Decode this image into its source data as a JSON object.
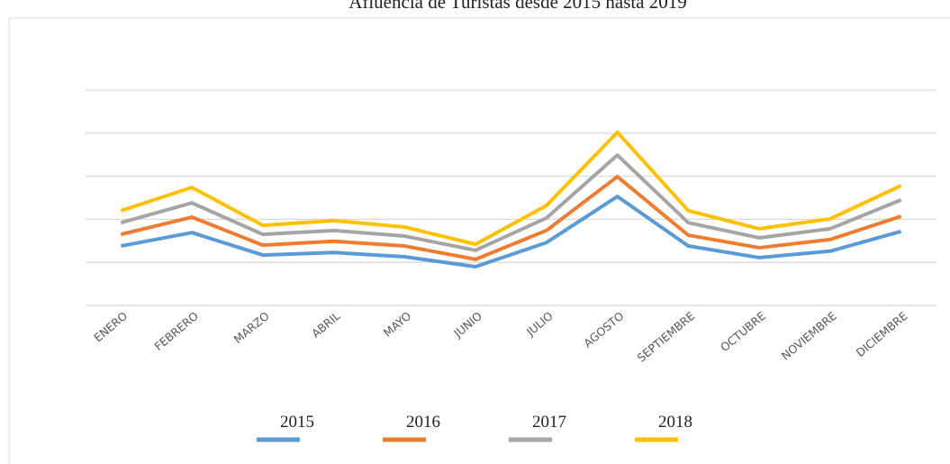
{
  "chart_data": {
    "type": "line",
    "title": "Afluencia de Turistas desde 2015 hasta 2019",
    "categories": [
      "ENERO",
      "FEBRERO",
      "MARZO",
      "ABRIL",
      "MAYO",
      "JUNIO",
      "JULIO",
      "AGOSTO",
      "SEPTIEMBRE",
      "OCTUBRE",
      "NOVIEMBRE",
      "DICIEMBRE"
    ],
    "series": [
      {
        "name": "2015",
        "color": "#5b9bd5",
        "values": [
          1.38,
          1.69,
          1.17,
          1.23,
          1.13,
          0.9,
          1.46,
          2.53,
          1.38,
          1.11,
          1.26,
          1.72
        ]
      },
      {
        "name": "2016",
        "color": "#ed7d31",
        "values": [
          1.65,
          2.05,
          1.4,
          1.49,
          1.38,
          1.07,
          1.74,
          2.99,
          1.63,
          1.34,
          1.53,
          2.07
        ]
      },
      {
        "name": "2017",
        "color": "#a5a5a5",
        "values": [
          1.92,
          2.38,
          1.65,
          1.74,
          1.61,
          1.28,
          2.03,
          3.49,
          1.92,
          1.57,
          1.78,
          2.45
        ]
      },
      {
        "name": "2018",
        "color": "#ffc000",
        "values": [
          2.2,
          2.74,
          1.86,
          1.97,
          1.82,
          1.42,
          2.32,
          4.02,
          2.2,
          1.78,
          2.01,
          2.78
        ]
      }
    ],
    "ylim": [
      0,
      5
    ],
    "yticks": [
      0,
      1,
      2,
      3,
      4,
      5
    ],
    "grid": true,
    "legend": "bottom"
  }
}
